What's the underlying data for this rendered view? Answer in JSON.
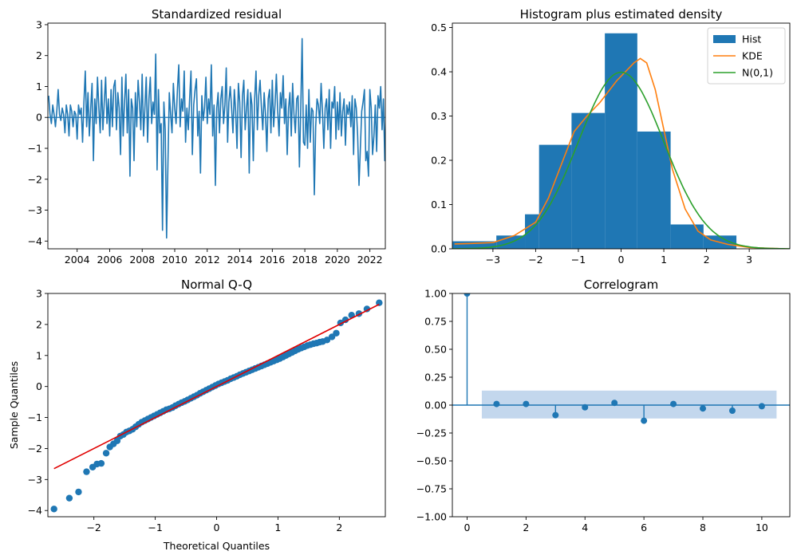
{
  "colors": {
    "blue": "#1f77b4",
    "orange": "#ff7f0e",
    "green": "#2ca02c",
    "red": "#e00000",
    "band": "#b8d0ea"
  },
  "chart_data": [
    {
      "type": "line",
      "title": "Standardized residual",
      "xlabel": "",
      "ylabel": "",
      "xlim": [
        2002.2,
        2022.95
      ],
      "ylim": [
        -4.25,
        3.05
      ],
      "xticks": [
        2004,
        2006,
        2008,
        2010,
        2012,
        2014,
        2016,
        2018,
        2020,
        2022
      ],
      "xtick_labels": [
        "2004",
        "2006",
        "2008",
        "2010",
        "2012",
        "2014",
        "2016",
        "2018",
        "2020",
        "2022"
      ],
      "yticks": [
        -4,
        -3,
        -2,
        -1,
        0,
        1,
        2,
        3
      ],
      "ytick_labels": [
        "−4",
        "−3",
        "−2",
        "−1",
        "0",
        "1",
        "2",
        "3"
      ],
      "baseline": 0,
      "x_start": 2002.25,
      "x_step": 0.08333,
      "values": [
        0.7,
        0.1,
        -0.2,
        0.4,
        0.1,
        -0.3,
        0.2,
        0.9,
        0.1,
        -0.1,
        0.3,
        0.1,
        -0.5,
        0.4,
        0.1,
        -0.6,
        0.4,
        0.2,
        -0.3,
        0.2,
        0.1,
        -0.7,
        0.4,
        0.1,
        0.3,
        -0.8,
        0.5,
        1.5,
        -0.3,
        0.8,
        -0.6,
        0.3,
        1.1,
        -1.4,
        0.6,
        -0.2,
        1.3,
        0.3,
        -0.5,
        1.2,
        -0.4,
        0.5,
        1.3,
        -0.2,
        0.6,
        -0.6,
        0.9,
        -0.3,
        1.0,
        1.2,
        -0.4,
        0.8,
        0.3,
        -1.2,
        1.3,
        -0.6,
        0.5,
        1.4,
        -0.5,
        0.9,
        -1.9,
        0.6,
        0.3,
        -1.4,
        0.8,
        -0.3,
        1.2,
        0.5,
        -0.4,
        1.4,
        -0.6,
        0.3,
        1.3,
        -0.8,
        0.6,
        1.3,
        -0.2,
        0.5,
        0.1,
        2.05,
        -1.7,
        0.9,
        -0.5,
        -0.2,
        -3.65,
        0.5,
        -0.4,
        -3.9,
        -1.5,
        0.8,
        0.1,
        -0.5,
        1.1,
        0.3,
        -0.2,
        0.9,
        1.7,
        -0.3,
        0.6,
        0.2,
        1.5,
        -0.8,
        0.3,
        -0.4,
        0.6,
        1.5,
        -1.2,
        0.4,
        0.9,
        1.25,
        -0.6,
        0.2,
        -1.8,
        0.7,
        -0.1,
        0.3,
        1.3,
        -0.2,
        0.6,
        0.1,
        1.7,
        -0.6,
        0.4,
        -2.2,
        0.3,
        0.8,
        -0.5,
        0.6,
        1.0,
        -0.2,
        0.4,
        1.6,
        -0.8,
        0.5,
        1.0,
        0.3,
        -0.5,
        0.9,
        0.2,
        -1.0,
        1.1,
        0.5,
        -1.3,
        0.7,
        1.2,
        -0.4,
        0.3,
        0.9,
        -1.8,
        0.8,
        0.4,
        -1.4,
        0.6,
        1.5,
        -0.4,
        0.7,
        1.2,
        0.3,
        -0.4,
        0.8,
        0.1,
        -1.1,
        0.6,
        0.9,
        -0.5,
        1.2,
        -0.3,
        0.4,
        1.4,
        0.2,
        -0.6,
        0.8,
        0.3,
        1.35,
        -0.2,
        0.6,
        -1.2,
        0.3,
        0.8,
        -0.6,
        1.1,
        0.1,
        -0.5,
        0.6,
        0.7,
        -1.6,
        0.3,
        2.55,
        -0.8,
        -0.9,
        0.4,
        -1.0,
        0.9,
        -0.8,
        0.3,
        0.2,
        -2.5,
        -0.3,
        0.6,
        0.4,
        -0.2,
        1.1,
        0.2,
        -1.0,
        0.3,
        0.6,
        -0.4,
        0.9,
        -1.0,
        0.5,
        0.3,
        1.0,
        -0.7,
        0.5,
        -0.4,
        0.8,
        -0.6,
        0.2,
        0.6,
        -0.9,
        0.4,
        0.1,
        0.5,
        -0.3,
        0.7,
        -1.2,
        0.6,
        0.3,
        -0.6,
        -2.2,
        -1.0,
        0.2,
        0.5,
        0.9,
        -1.4,
        -1.1,
        -1.9,
        0.9,
        0.3,
        -1.2,
        -0.6,
        0.4,
        -1.1,
        0.7,
        0.3,
        1.0,
        -0.4,
        0.6,
        -1.4,
        0.7,
        0.2,
        -0.4,
        0.6,
        1.1,
        0.1,
        0.4,
        1.25,
        0.5,
        0.9,
        0.2,
        1.5,
        -0.7,
        0.3,
        0.8,
        -1.0,
        -3.4,
        -0.3,
        0.8,
        0.2,
        -0.5,
        0.6,
        1.2,
        0.3,
        0.9,
        -0.3,
        0.5,
        1.2,
        0.4,
        -0.8,
        -0.6,
        0.3,
        -1.2,
        0.5,
        0.9,
        -0.4,
        0.6,
        -0.9,
        0.3,
        0.8,
        -0.6,
        0.4,
        1.3,
        -0.2,
        0.6,
        2.75,
        -0.8,
        1.4,
        2.0,
        -2.4,
        -0.4,
        0.6,
        -2.6,
        0.3,
        0.5,
        1.05,
        -0.9,
        -1.4
      ]
    },
    {
      "type": "histogram",
      "title": "Histogram plus estimated density",
      "xlabel": "",
      "ylabel": "",
      "xlim": [
        -3.95,
        3.95
      ],
      "ylim": [
        0,
        0.51
      ],
      "xticks": [
        -3,
        -2,
        -1,
        0,
        1,
        2,
        3
      ],
      "xtick_labels": [
        "−3",
        "−2",
        "−1",
        "0",
        "1",
        "2",
        "3"
      ],
      "yticks": [
        0.0,
        0.1,
        0.2,
        0.3,
        0.4,
        0.5
      ],
      "ytick_labels": [
        "0.0",
        "0.1",
        "0.2",
        "0.3",
        "0.4",
        "0.5"
      ],
      "bins": [
        {
          "x0": -3.95,
          "x1": -2.92,
          "value": 0.017
        },
        {
          "x0": -2.92,
          "x1": -2.25,
          "value": 0.03
        },
        {
          "x0": -2.25,
          "x1": -1.92,
          "value": 0.078
        },
        {
          "x0": -1.92,
          "x1": -1.16,
          "value": 0.235
        },
        {
          "x0": -1.16,
          "x1": -0.38,
          "value": 0.307
        },
        {
          "x0": -0.38,
          "x1": 0.38,
          "value": 0.487
        },
        {
          "x0": 0.38,
          "x1": 1.16,
          "value": 0.265
        },
        {
          "x0": 1.16,
          "x1": 1.93,
          "value": 0.055
        },
        {
          "x0": 1.93,
          "x1": 2.7,
          "value": 0.03
        }
      ],
      "series": [
        {
          "name": "KDE",
          "x": [
            -3.9,
            -3.5,
            -3.0,
            -2.5,
            -2.0,
            -1.7,
            -1.4,
            -1.1,
            -0.8,
            -0.5,
            -0.3,
            -0.1,
            0.1,
            0.3,
            0.45,
            0.6,
            0.8,
            1.0,
            1.2,
            1.5,
            1.8,
            2.1,
            2.5,
            3.0,
            3.5,
            3.9
          ],
          "y": [
            0.011,
            0.012,
            0.014,
            0.03,
            0.06,
            0.115,
            0.19,
            0.265,
            0.3,
            0.33,
            0.355,
            0.38,
            0.4,
            0.42,
            0.43,
            0.42,
            0.36,
            0.27,
            0.18,
            0.09,
            0.04,
            0.02,
            0.01,
            0.003,
            0.001,
            0.0
          ]
        },
        {
          "name": "N(0,1)",
          "function": "normal_pdf",
          "mean": 0,
          "sd": 1
        }
      ],
      "legend": {
        "position": "top-right",
        "entries": [
          "Hist",
          "KDE",
          "N(0,1)"
        ]
      }
    },
    {
      "type": "scatter",
      "title": "Normal Q-Q",
      "xlabel": "Theoretical Quantiles",
      "ylabel": "Sample Quantiles",
      "xlim": [
        -2.75,
        2.75
      ],
      "ylim": [
        -4.2,
        3.0
      ],
      "xticks": [
        -2,
        -1,
        0,
        1,
        2
      ],
      "xtick_labels": [
        "−2",
        "−1",
        "0",
        "1",
        "2"
      ],
      "yticks": [
        -4,
        -3,
        -2,
        -1,
        0,
        1,
        2,
        3
      ],
      "ytick_labels": [
        "−4",
        "−3",
        "−2",
        "−1",
        "0",
        "1",
        "2",
        "3"
      ],
      "reference_line": {
        "x": [
          -2.65,
          2.65
        ],
        "y": [
          -2.65,
          2.65
        ]
      },
      "x": [
        -2.65,
        -2.4,
        -2.25,
        -2.12,
        -2.02,
        -1.95,
        -1.88,
        -1.8,
        -1.74,
        -1.68,
        -1.62,
        -1.57,
        -1.52,
        -1.47,
        -1.42,
        -1.37,
        -1.32,
        -1.27,
        -1.22,
        -1.17,
        -1.12,
        -1.07,
        -1.02,
        -0.97,
        -0.92,
        -0.87,
        -0.82,
        -0.77,
        -0.72,
        -0.67,
        -0.62,
        -0.57,
        -0.52,
        -0.47,
        -0.42,
        -0.37,
        -0.32,
        -0.27,
        -0.22,
        -0.17,
        -0.12,
        -0.07,
        -0.02,
        0.03,
        0.08,
        0.13,
        0.18,
        0.23,
        0.28,
        0.33,
        0.38,
        0.43,
        0.48,
        0.53,
        0.58,
        0.63,
        0.68,
        0.73,
        0.78,
        0.83,
        0.88,
        0.93,
        0.98,
        1.03,
        1.08,
        1.13,
        1.18,
        1.23,
        1.28,
        1.33,
        1.38,
        1.43,
        1.48,
        1.53,
        1.58,
        1.63,
        1.68,
        1.73,
        1.8,
        1.88,
        1.95,
        2.02,
        2.1,
        2.2,
        2.32,
        2.45,
        2.65
      ],
      "y": [
        -3.95,
        -3.6,
        -3.4,
        -2.75,
        -2.6,
        -2.5,
        -2.48,
        -2.15,
        -1.95,
        -1.85,
        -1.75,
        -1.6,
        -1.55,
        -1.47,
        -1.43,
        -1.38,
        -1.3,
        -1.22,
        -1.15,
        -1.1,
        -1.05,
        -1.0,
        -0.95,
        -0.9,
        -0.85,
        -0.8,
        -0.75,
        -0.72,
        -0.68,
        -0.62,
        -0.57,
        -0.52,
        -0.48,
        -0.43,
        -0.38,
        -0.33,
        -0.28,
        -0.22,
        -0.17,
        -0.12,
        -0.07,
        -0.02,
        0.03,
        0.08,
        0.12,
        0.16,
        0.2,
        0.25,
        0.29,
        0.33,
        0.38,
        0.42,
        0.46,
        0.5,
        0.54,
        0.58,
        0.62,
        0.66,
        0.7,
        0.74,
        0.78,
        0.82,
        0.86,
        0.9,
        0.95,
        1.0,
        1.05,
        1.1,
        1.15,
        1.2,
        1.24,
        1.28,
        1.32,
        1.35,
        1.38,
        1.4,
        1.43,
        1.45,
        1.5,
        1.6,
        1.72,
        2.05,
        2.15,
        2.3,
        2.35,
        2.5,
        2.7
      ]
    },
    {
      "type": "stem",
      "title": "Correlogram",
      "xlabel": "",
      "ylabel": "",
      "xlim": [
        -0.5,
        10.95
      ],
      "ylim": [
        -1.0,
        1.0
      ],
      "xticks": [
        0,
        2,
        4,
        6,
        8,
        10
      ],
      "xtick_labels": [
        "0",
        "2",
        "4",
        "6",
        "8",
        "10"
      ],
      "yticks": [
        -1.0,
        -0.75,
        -0.5,
        -0.25,
        0.0,
        0.25,
        0.5,
        0.75,
        1.0
      ],
      "ytick_labels": [
        "−1.00",
        "−0.75",
        "−0.50",
        "−0.25",
        "0.00",
        "0.25",
        "0.50",
        "0.75",
        "1.00"
      ],
      "lags": [
        0,
        1,
        2,
        3,
        4,
        5,
        6,
        7,
        8,
        9,
        10
      ],
      "values": [
        1.0,
        0.01,
        0.01,
        -0.09,
        -0.02,
        0.02,
        -0.14,
        0.01,
        -0.03,
        -0.05,
        -0.01
      ],
      "confidence_band": {
        "x": [
          0.5,
          10.5
        ],
        "lower": -0.12,
        "upper": 0.13
      }
    }
  ]
}
